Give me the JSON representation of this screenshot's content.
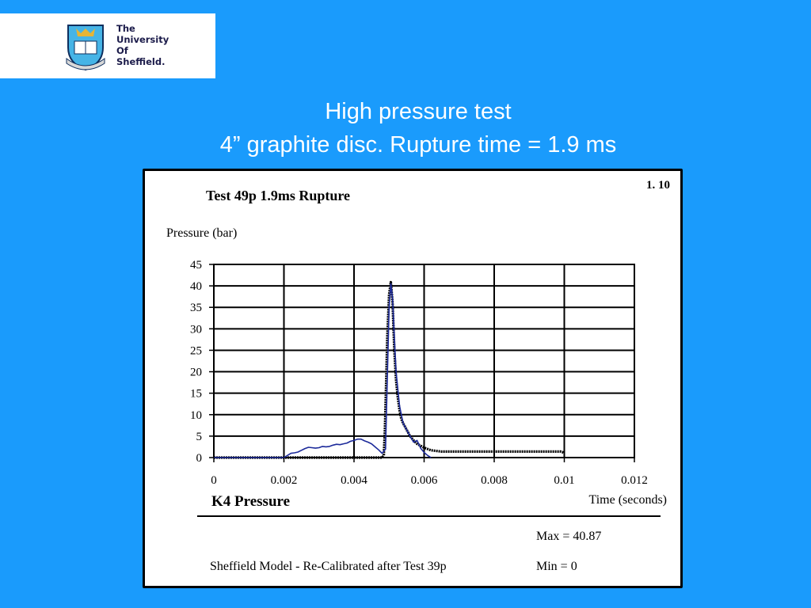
{
  "logo": {
    "line1": "The",
    "line2": "University",
    "line3": "Of",
    "line4": "Sheffield."
  },
  "slide": {
    "title_line1": "High pressure test",
    "title_line2": "4” graphite disc. Rupture time  =  1.9 ms"
  },
  "panel": {
    "figure_number": "1. 10",
    "sensor_label": "K4 Pressure",
    "model_note": "Sheffield Model - Re-Calibrated after Test 39p",
    "max_label": "Max = 40.87",
    "min_label": "Min = 0"
  },
  "colors": {
    "background": "#1a9bfc",
    "measured": "#000000",
    "model": "#1c2a9a"
  },
  "chart_data": {
    "type": "line",
    "title": "Test 49p 1.9ms Rupture",
    "xlabel": "Time (seconds)",
    "ylabel": "Pressure (bar)",
    "xlim": [
      0,
      0.012
    ],
    "ylim": [
      0,
      45
    ],
    "xticks": [
      0,
      0.002,
      0.004,
      0.006,
      0.008,
      0.01,
      0.012
    ],
    "xtick_labels": [
      "0",
      "0.002",
      "0.004",
      "0.006",
      "0.008",
      "0.01",
      "0.012"
    ],
    "yticks": [
      0,
      5,
      10,
      15,
      20,
      25,
      30,
      35,
      40,
      45
    ],
    "ytick_labels": [
      "0",
      "5",
      "10",
      "15",
      "20",
      "25",
      "30",
      "35",
      "40",
      "45"
    ],
    "grid": true,
    "series": [
      {
        "values_x": [
          0,
          0.002,
          0.0048,
          0.00485,
          0.00488,
          0.0049,
          0.00495,
          0.005,
          0.00505,
          0.0051,
          0.00515,
          0.0052,
          0.00525,
          0.0053,
          0.00535,
          0.0054,
          0.0055,
          0.0056,
          0.0057,
          0.0058,
          0.006,
          0.0062,
          0.0065,
          0.007,
          0.008,
          0.009,
          0.0099,
          0.01
        ],
        "values_y": [
          0,
          0,
          0,
          0.5,
          6,
          12,
          28,
          38,
          40.87,
          36,
          25,
          18,
          14,
          11,
          9,
          8,
          6.5,
          5,
          4,
          3.2,
          2.3,
          1.7,
          1.4,
          1.4,
          1.4,
          1.4,
          1.4,
          1.1
        ]
      },
      {
        "values_x": [
          0,
          0.002,
          0.0021,
          0.0022,
          0.0023,
          0.0024,
          0.0025,
          0.0026,
          0.0027,
          0.0028,
          0.0029,
          0.003,
          0.0031,
          0.0032,
          0.0033,
          0.0034,
          0.0035,
          0.0036,
          0.0037,
          0.0038,
          0.0039,
          0.004,
          0.0041,
          0.0042,
          0.0043,
          0.0044,
          0.0045,
          0.0046,
          0.0047,
          0.0048,
          0.0049,
          0.005,
          0.00505,
          0.0051,
          0.00515,
          0.0052,
          0.0053,
          0.0054,
          0.0055,
          0.0056,
          0.0057,
          0.0058,
          0.0059,
          0.006,
          0.0061,
          0.0062
        ],
        "values_y": [
          0,
          0,
          0.5,
          1.0,
          1.1,
          1.3,
          1.7,
          2.1,
          2.4,
          2.3,
          2.2,
          2.3,
          2.6,
          2.5,
          2.6,
          2.9,
          3.1,
          3.0,
          3.2,
          3.4,
          3.8,
          4.0,
          4.3,
          4.3,
          3.9,
          3.6,
          3.2,
          2.5,
          1.8,
          1.0,
          2.0,
          35,
          40.5,
          37,
          28,
          20,
          12,
          8,
          6.5,
          5,
          3.6,
          4,
          2.2,
          1.2,
          0.5,
          0
        ]
      }
    ]
  }
}
